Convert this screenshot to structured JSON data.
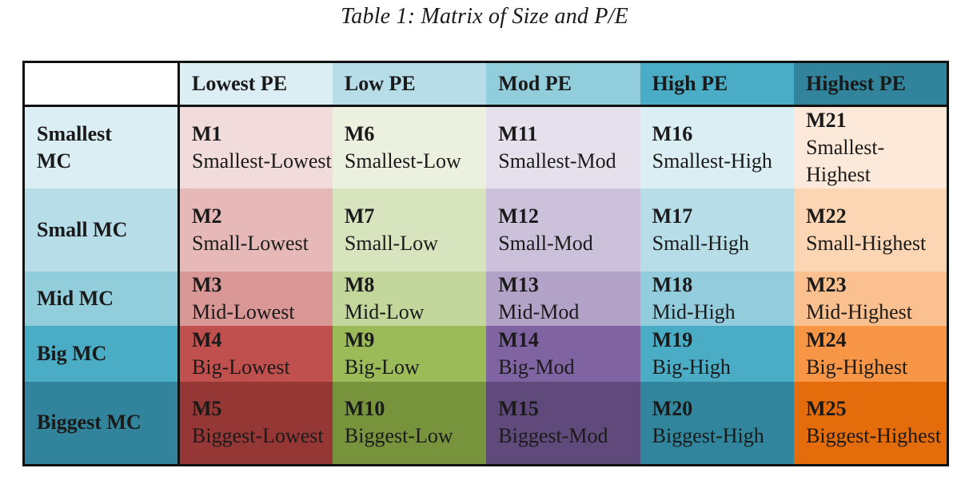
{
  "caption": "Table 1: Matrix of Size and P/E",
  "columns": [
    "Lowest PE",
    "Low PE",
    "Mod PE",
    "High PE",
    "Highest PE"
  ],
  "header_colors": [
    "#dbeef4",
    "#b6dde8",
    "#92cddc",
    "#4bacc6",
    "#31849b"
  ],
  "rows": [
    {
      "label": "Smallest MC",
      "label_bg": "#dbeef4",
      "cells": [
        {
          "code": "M1",
          "label": "Smallest-Lowest",
          "bg": "#f2dcdb"
        },
        {
          "code": "M6",
          "label": "Smallest-Low",
          "bg": "#ebf1de"
        },
        {
          "code": "M11",
          "label": "Smallest-Mod",
          "bg": "#e5e0ec"
        },
        {
          "code": "M16",
          "label": "Smallest-High",
          "bg": "#dbeef4"
        },
        {
          "code": "M21",
          "label": "Smallest-Highest",
          "bg": "#fde9d9"
        }
      ]
    },
    {
      "label": "Small MC",
      "label_bg": "#b6dde8",
      "cells": [
        {
          "code": "M2",
          "label": "Small-Lowest",
          "bg": "#e6b9b8"
        },
        {
          "code": "M7",
          "label": "Small-Low",
          "bg": "#d7e4bd"
        },
        {
          "code": "M12",
          "label": "Small-Mod",
          "bg": "#ccc1da"
        },
        {
          "code": "M17",
          "label": "Small-High",
          "bg": "#b6dde8"
        },
        {
          "code": "M22",
          "label": "Small-Highest",
          "bg": "#fcd5b4"
        }
      ]
    },
    {
      "label": "Mid MC",
      "label_bg": "#92cddc",
      "cells": [
        {
          "code": "M3",
          "label": "Mid-Lowest",
          "bg": "#d99795"
        },
        {
          "code": "M8",
          "label": "Mid-Low",
          "bg": "#c3d69b"
        },
        {
          "code": "M13",
          "label": "Mid-Mod",
          "bg": "#b3a2c7"
        },
        {
          "code": "M18",
          "label": "Mid-High",
          "bg": "#93cddd"
        },
        {
          "code": "M23",
          "label": "Mid-Highest",
          "bg": "#fac08f"
        }
      ]
    },
    {
      "label": "Big MC",
      "label_bg": "#4bacc6",
      "cells": [
        {
          "code": "M4",
          "label": "Big-Lowest",
          "bg": "#c0504d"
        },
        {
          "code": "M9",
          "label": "Big-Low",
          "bg": "#9bbb59"
        },
        {
          "code": "M14",
          "label": "Big-Mod",
          "bg": "#8064a2"
        },
        {
          "code": "M19",
          "label": "Big-High",
          "bg": "#4bacc6"
        },
        {
          "code": "M24",
          "label": "Big-Highest",
          "bg": "#f79646"
        }
      ]
    },
    {
      "label": "Biggest MC",
      "label_bg": "#31849b",
      "cells": [
        {
          "code": "M5",
          "label": "Biggest-Lowest",
          "bg": "#953735"
        },
        {
          "code": "M10",
          "label": "Biggest-Low",
          "bg": "#77933c"
        },
        {
          "code": "M15",
          "label": "Biggest-Mod",
          "bg": "#604a7b"
        },
        {
          "code": "M20",
          "label": "Biggest-High",
          "bg": "#31859c"
        },
        {
          "code": "M25",
          "label": "Biggest-Highest",
          "bg": "#e46c0a"
        }
      ]
    }
  ]
}
